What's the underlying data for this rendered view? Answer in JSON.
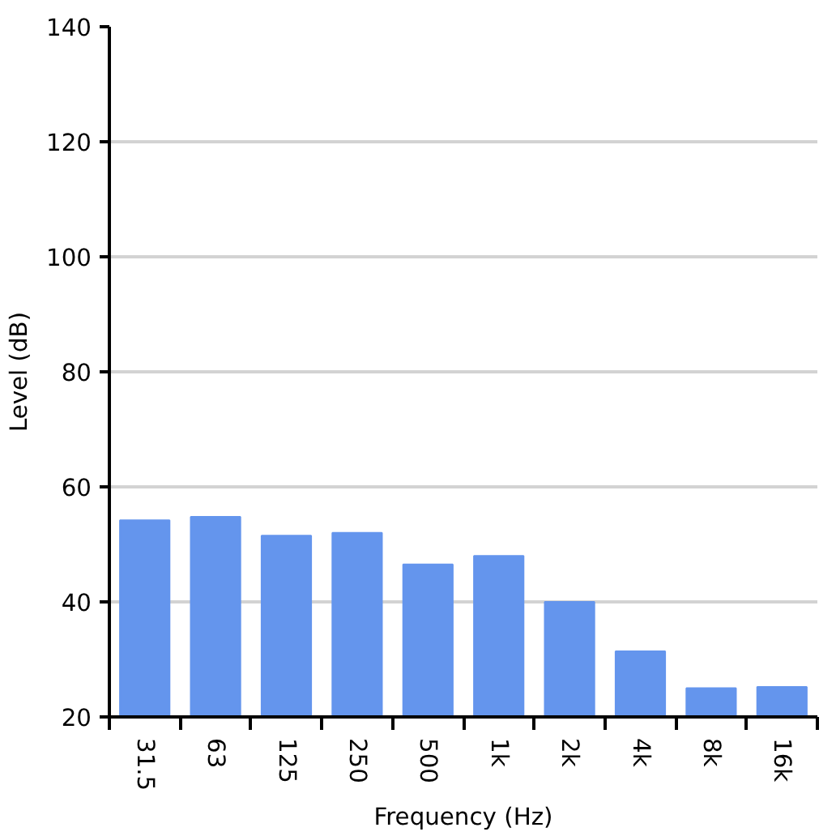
{
  "chart_data": {
    "type": "bar",
    "xlabel": "Frequency (Hz)",
    "ylabel": "Level (dB)",
    "categories": [
      "31.5",
      "63",
      "125",
      "250",
      "500",
      "1k",
      "2k",
      "4k",
      "8k",
      "16k"
    ],
    "values": [
      54.2,
      54.8,
      51.5,
      52.0,
      46.5,
      48.0,
      40.0,
      31.4,
      25.0,
      25.2
    ],
    "color": "#6495ed",
    "ylim": [
      20,
      140
    ],
    "yticks": [
      20,
      40,
      60,
      80,
      100,
      120,
      140
    ],
    "grid": "y"
  }
}
